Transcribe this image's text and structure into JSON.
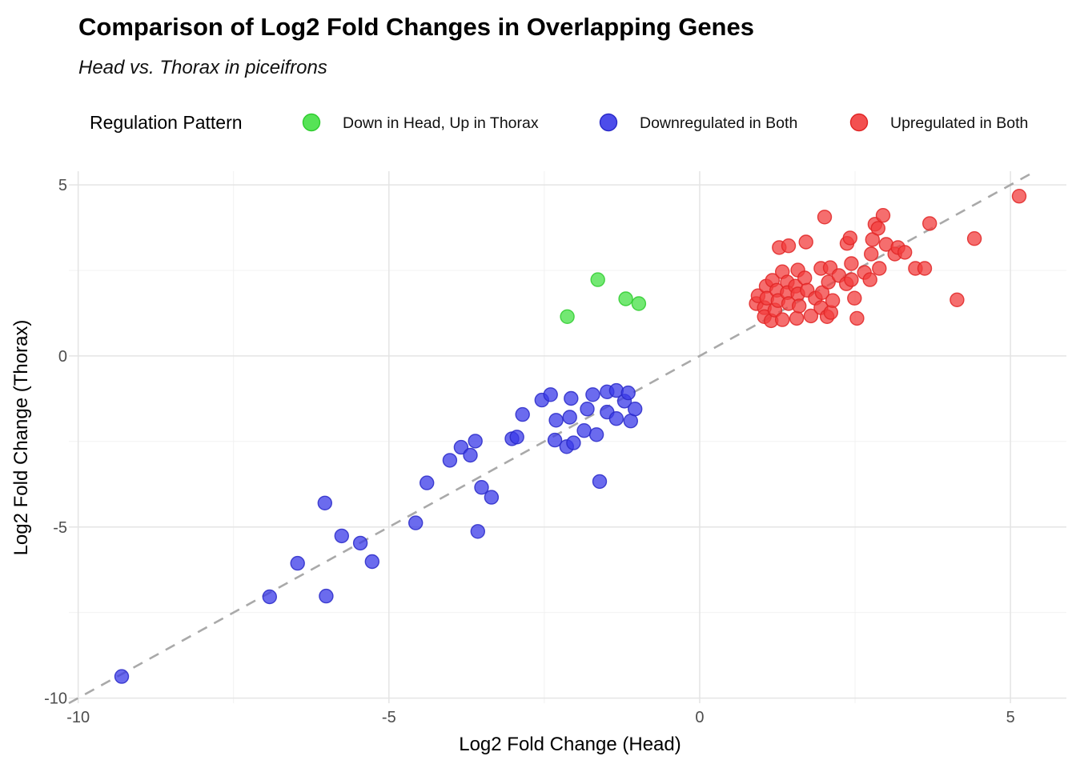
{
  "header": {
    "title": "Comparison of Log2 Fold Changes in Overlapping Genes",
    "subtitle": "Head vs. Thorax in piceifrons"
  },
  "legend": {
    "title": "Regulation Pattern",
    "position": "top",
    "items": [
      {
        "label": "Down in Head, Up in Thorax",
        "color": "#44E044",
        "stroke": "#2ECC2E"
      },
      {
        "label": "Downregulated in Both",
        "color": "#3A3AE8",
        "stroke": "#2929C8"
      },
      {
        "label": "Upregulated in Both",
        "color": "#F23D3D",
        "stroke": "#E02525"
      }
    ]
  },
  "chart_data": {
    "type": "scatter",
    "title": "Comparison of Log2 Fold Changes in Overlapping Genes",
    "subtitle": "Head vs. Thorax in piceifrons",
    "xlabel": "Log2 Fold Change (Head)",
    "ylabel": "Log2 Fold Change (Thorax)",
    "xlim": [
      -10.15,
      5.9
    ],
    "ylim": [
      -10.15,
      5.4
    ],
    "x_ticks": [
      -10,
      -5,
      0,
      5
    ],
    "y_ticks": [
      5,
      0,
      -5,
      -10
    ],
    "x_tick_labels": [
      "-10",
      "-5",
      "0",
      "5"
    ],
    "y_tick_labels": [
      "5",
      "0",
      "-5",
      "-10"
    ],
    "x_minor_ticks": [
      -7.5,
      -2.5,
      2.5
    ],
    "y_minor_ticks": [
      2.5,
      -2.5,
      -7.5
    ],
    "grid": true,
    "legend_position": "top",
    "identity_line": {
      "equation": "y = x",
      "style": "dashed",
      "color": "#A9A9A9"
    },
    "colors": {
      "grid_major": "#E4E4E4",
      "grid_minor": "#F0F0F0",
      "tick_text": "#4D4D4D",
      "background": "#FFFFFF"
    },
    "series": [
      {
        "name": "Down in Head, Up in Thorax",
        "color": "#44E044",
        "stroke": "#2ECC2E",
        "points": [
          [
            -2.13,
            1.15
          ],
          [
            -1.64,
            2.23
          ],
          [
            -1.19,
            1.67
          ],
          [
            -0.98,
            1.53
          ]
        ]
      },
      {
        "name": "Downregulated in Both",
        "color": "#3A3AE8",
        "stroke": "#2929C8",
        "points": [
          [
            -9.3,
            -9.37
          ],
          [
            -6.92,
            -7.04
          ],
          [
            -6.47,
            -6.06
          ],
          [
            -6.01,
            -7.02
          ],
          [
            -6.03,
            -4.3
          ],
          [
            -5.76,
            -5.26
          ],
          [
            -5.46,
            -5.47
          ],
          [
            -5.27,
            -6.01
          ],
          [
            -4.57,
            -4.88
          ],
          [
            -4.39,
            -3.71
          ],
          [
            -4.02,
            -3.05
          ],
          [
            -3.84,
            -2.67
          ],
          [
            -3.69,
            -2.9
          ],
          [
            -3.61,
            -2.49
          ],
          [
            -3.51,
            -3.84
          ],
          [
            -3.35,
            -4.13
          ],
          [
            -3.57,
            -5.13
          ],
          [
            -3.02,
            -2.42
          ],
          [
            -2.85,
            -1.71
          ],
          [
            -2.94,
            -2.37
          ],
          [
            -2.54,
            -1.29
          ],
          [
            -2.4,
            -1.13
          ],
          [
            -2.31,
            -1.88
          ],
          [
            -2.33,
            -2.46
          ],
          [
            -2.07,
            -1.24
          ],
          [
            -2.09,
            -1.79
          ],
          [
            -2.14,
            -2.65
          ],
          [
            -2.03,
            -2.54
          ],
          [
            -1.86,
            -2.18
          ],
          [
            -1.81,
            -1.55
          ],
          [
            -1.72,
            -1.13
          ],
          [
            -1.66,
            -2.3
          ],
          [
            -1.61,
            -3.67
          ],
          [
            -1.49,
            -1.05
          ],
          [
            -1.49,
            -1.64
          ],
          [
            -1.34,
            -1.01
          ],
          [
            -1.34,
            -1.83
          ],
          [
            -1.21,
            -1.32
          ],
          [
            -1.15,
            -1.08
          ],
          [
            -1.11,
            -1.9
          ],
          [
            -1.04,
            -1.55
          ]
        ]
      },
      {
        "name": "Upregulated in Both",
        "color": "#F23D3D",
        "stroke": "#E02525",
        "points": [
          [
            0.91,
            1.53
          ],
          [
            0.94,
            1.76
          ],
          [
            1.04,
            1.41
          ],
          [
            1.04,
            1.15
          ],
          [
            1.07,
            2.04
          ],
          [
            1.08,
            1.69
          ],
          [
            1.15,
            1.03
          ],
          [
            1.17,
            2.21
          ],
          [
            1.21,
            1.34
          ],
          [
            1.24,
            1.92
          ],
          [
            1.26,
            1.62
          ],
          [
            1.28,
            3.17
          ],
          [
            1.33,
            2.46
          ],
          [
            1.33,
            1.06
          ],
          [
            1.41,
            2.16
          ],
          [
            1.41,
            1.85
          ],
          [
            1.43,
            3.22
          ],
          [
            1.43,
            1.53
          ],
          [
            1.54,
            2.04
          ],
          [
            1.56,
            1.1
          ],
          [
            1.58,
            2.51
          ],
          [
            1.58,
            1.81
          ],
          [
            1.6,
            1.46
          ],
          [
            1.69,
            2.28
          ],
          [
            1.71,
            3.33
          ],
          [
            1.73,
            1.92
          ],
          [
            1.79,
            1.17
          ],
          [
            1.86,
            1.69
          ],
          [
            1.95,
            2.56
          ],
          [
            1.95,
            1.41
          ],
          [
            1.97,
            1.85
          ],
          [
            2.01,
            4.06
          ],
          [
            2.05,
            1.15
          ],
          [
            2.07,
            2.16
          ],
          [
            2.1,
            2.58
          ],
          [
            2.11,
            1.27
          ],
          [
            2.14,
            1.62
          ],
          [
            2.24,
            2.35
          ],
          [
            2.36,
            2.11
          ],
          [
            2.37,
            3.29
          ],
          [
            2.42,
            3.45
          ],
          [
            2.44,
            2.7
          ],
          [
            2.44,
            2.23
          ],
          [
            2.49,
            1.69
          ],
          [
            2.53,
            1.1
          ],
          [
            2.65,
            2.44
          ],
          [
            2.74,
            2.23
          ],
          [
            2.76,
            2.98
          ],
          [
            2.78,
            3.4
          ],
          [
            2.82,
            3.85
          ],
          [
            2.87,
            3.73
          ],
          [
            2.89,
            2.56
          ],
          [
            2.95,
            4.11
          ],
          [
            3.0,
            3.26
          ],
          [
            3.14,
            2.98
          ],
          [
            3.19,
            3.17
          ],
          [
            3.3,
            3.03
          ],
          [
            3.47,
            2.56
          ],
          [
            3.62,
            2.56
          ],
          [
            3.7,
            3.87
          ],
          [
            4.14,
            1.64
          ],
          [
            4.42,
            3.43
          ],
          [
            5.14,
            4.67
          ]
        ]
      }
    ]
  }
}
